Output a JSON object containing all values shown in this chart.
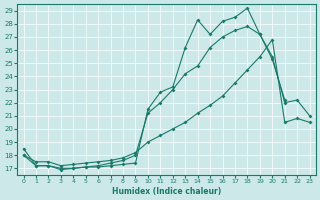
{
  "xlabel": "Humidex (Indice chaleur)",
  "xlim": [
    -0.5,
    23.5
  ],
  "ylim": [
    16.5,
    29.5
  ],
  "yticks": [
    17,
    18,
    19,
    20,
    21,
    22,
    23,
    24,
    25,
    26,
    27,
    28,
    29
  ],
  "xticks": [
    0,
    1,
    2,
    3,
    4,
    5,
    6,
    7,
    8,
    9,
    10,
    11,
    12,
    13,
    14,
    15,
    16,
    17,
    18,
    19,
    20,
    21,
    22,
    23
  ],
  "bg_color": "#cce8e8",
  "line_color": "#1a7a6a",
  "line1_x": [
    0,
    1,
    2,
    3,
    4,
    5,
    6,
    7,
    8,
    9,
    10,
    11,
    12,
    13,
    14,
    15,
    16,
    17,
    18,
    19,
    20,
    21
  ],
  "line1_y": [
    18.5,
    17.2,
    17.2,
    16.9,
    17.0,
    17.1,
    17.1,
    17.2,
    17.3,
    17.4,
    21.5,
    22.8,
    23.2,
    26.2,
    28.3,
    27.2,
    28.2,
    28.5,
    29.2,
    27.2,
    25.3,
    22.2
  ],
  "line2_x": [
    0,
    1,
    2,
    3,
    4,
    5,
    6,
    7,
    8,
    9,
    10,
    11,
    12,
    13,
    14,
    15,
    16,
    17,
    18,
    19,
    20,
    21,
    22,
    23
  ],
  "line2_y": [
    18.0,
    17.2,
    17.2,
    17.0,
    17.0,
    17.1,
    17.2,
    17.4,
    17.6,
    18.0,
    21.2,
    22.0,
    23.0,
    24.2,
    24.8,
    26.2,
    27.0,
    27.5,
    27.8,
    27.2,
    25.5,
    22.0,
    22.2,
    21.0
  ],
  "line3_x": [
    0,
    1,
    2,
    3,
    4,
    5,
    6,
    7,
    8,
    9,
    10,
    11,
    12,
    13,
    14,
    15,
    16,
    17,
    18,
    19,
    20,
    21,
    22,
    23
  ],
  "line3_y": [
    18.0,
    17.5,
    17.5,
    17.2,
    17.3,
    17.4,
    17.5,
    17.6,
    17.8,
    18.2,
    19.0,
    19.5,
    20.0,
    20.5,
    21.2,
    21.8,
    22.5,
    23.5,
    24.5,
    25.5,
    26.8,
    20.5,
    20.8,
    20.5
  ]
}
